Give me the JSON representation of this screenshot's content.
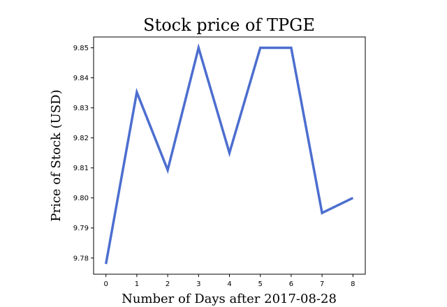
{
  "chart_data": {
    "type": "line",
    "title": "Stock price of TPGE",
    "xlabel": "Number of Days after 2017-08-28",
    "ylabel": "Price of Stock (USD)",
    "x": [
      0,
      1,
      2,
      3,
      4,
      5,
      6,
      7,
      8
    ],
    "series": [
      {
        "values": [
          9.778,
          9.8352,
          9.8093,
          9.85,
          9.815,
          9.85,
          9.85,
          9.795,
          9.8
        ]
      }
    ],
    "xlim": [
      -0.4,
      8.4
    ],
    "ylim": [
      9.7746,
      9.8536
    ],
    "xticks": [
      "0",
      "1",
      "2",
      "3",
      "4",
      "5",
      "6",
      "7",
      "8"
    ],
    "yticks": [
      "9.78",
      "9.79",
      "9.80",
      "9.81",
      "9.82",
      "9.83",
      "9.84",
      "9.85"
    ],
    "grid": false,
    "color": "#4c6ecf"
  }
}
